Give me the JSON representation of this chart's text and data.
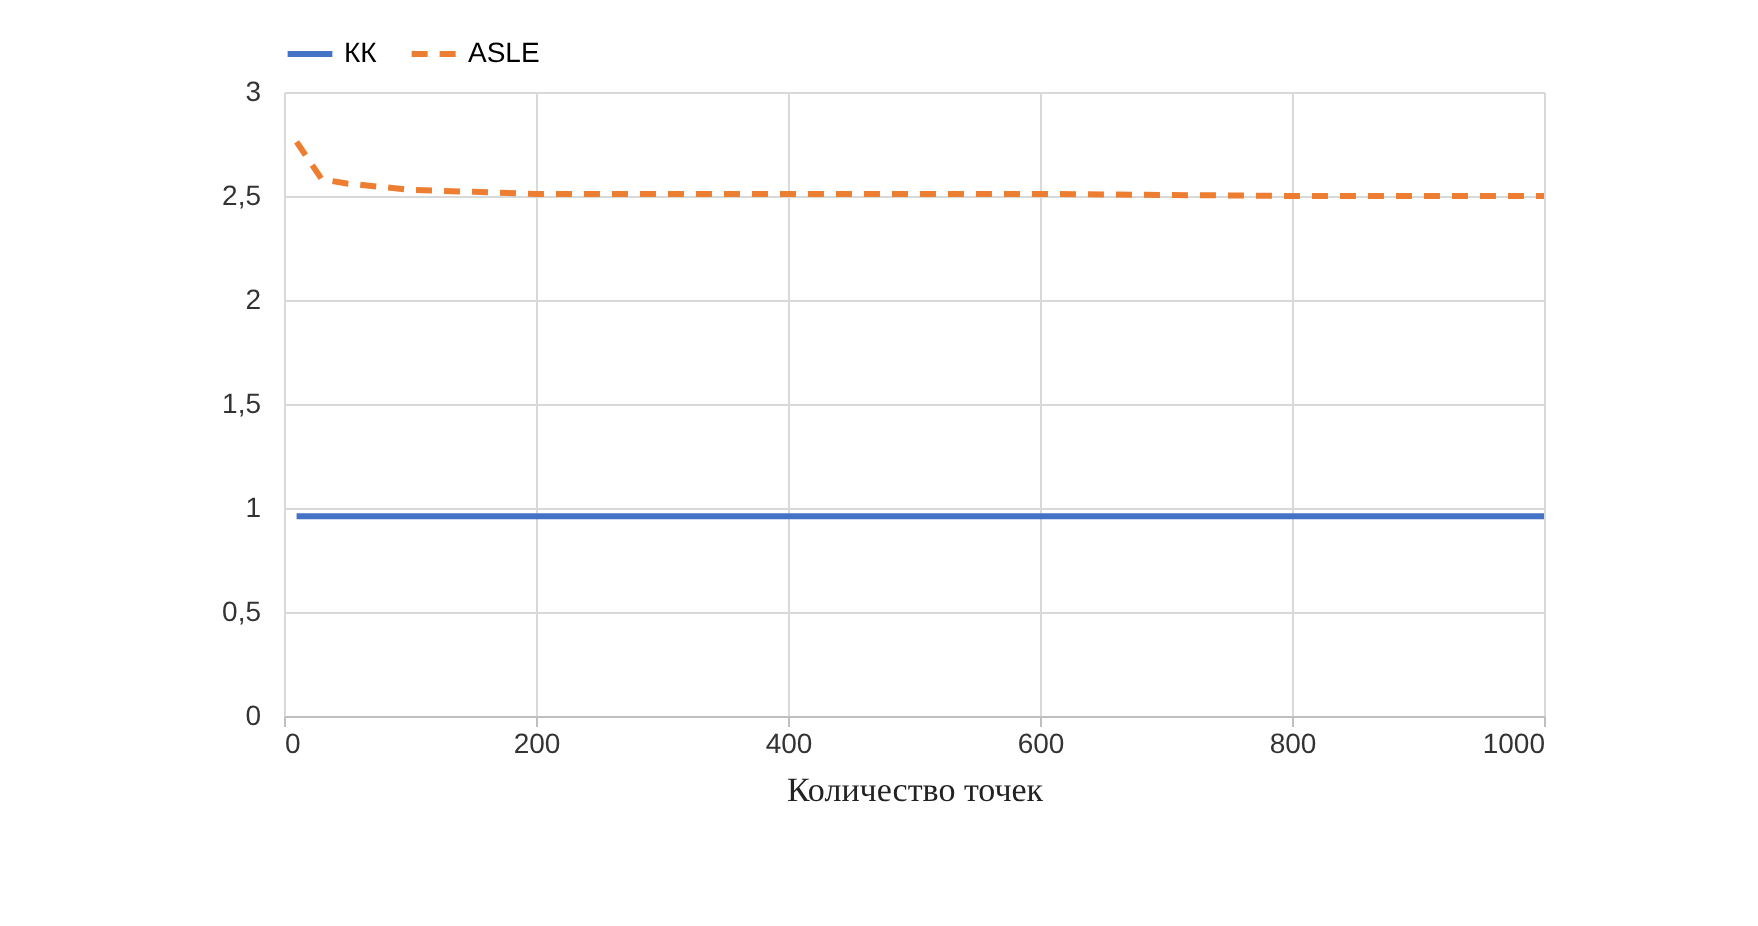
{
  "chart_data": {
    "type": "line",
    "xlabel": "Количество точек",
    "series": [
      {
        "name": "КК",
        "color": "#4472c4",
        "line_style": "solid",
        "x": [
          10,
          200,
          400,
          600,
          800,
          1000
        ],
        "values": [
          0.96,
          0.96,
          0.96,
          0.96,
          0.96,
          0.96
        ]
      },
      {
        "name": "ASLE",
        "color": "#ed7d31",
        "line_style": "dashed",
        "x": [
          10,
          30,
          50,
          100,
          150,
          200,
          400,
          600,
          800,
          1000
        ],
        "values": [
          2.76,
          2.58,
          2.56,
          2.53,
          2.52,
          2.51,
          2.51,
          2.51,
          2.5,
          2.5
        ]
      }
    ],
    "xlim": [
      0,
      1000
    ],
    "xticks": [
      0,
      200,
      400,
      600,
      800,
      1000
    ],
    "ylim": [
      0,
      3
    ],
    "yticks": [
      0,
      {
        "value": 0.5,
        "label": "0,5"
      },
      1,
      {
        "value": 1.5,
        "label": "1,5"
      },
      2,
      {
        "value": 2.5,
        "label": "2,5"
      },
      3
    ],
    "grid": true,
    "legend": "top",
    "marker": "none"
  }
}
